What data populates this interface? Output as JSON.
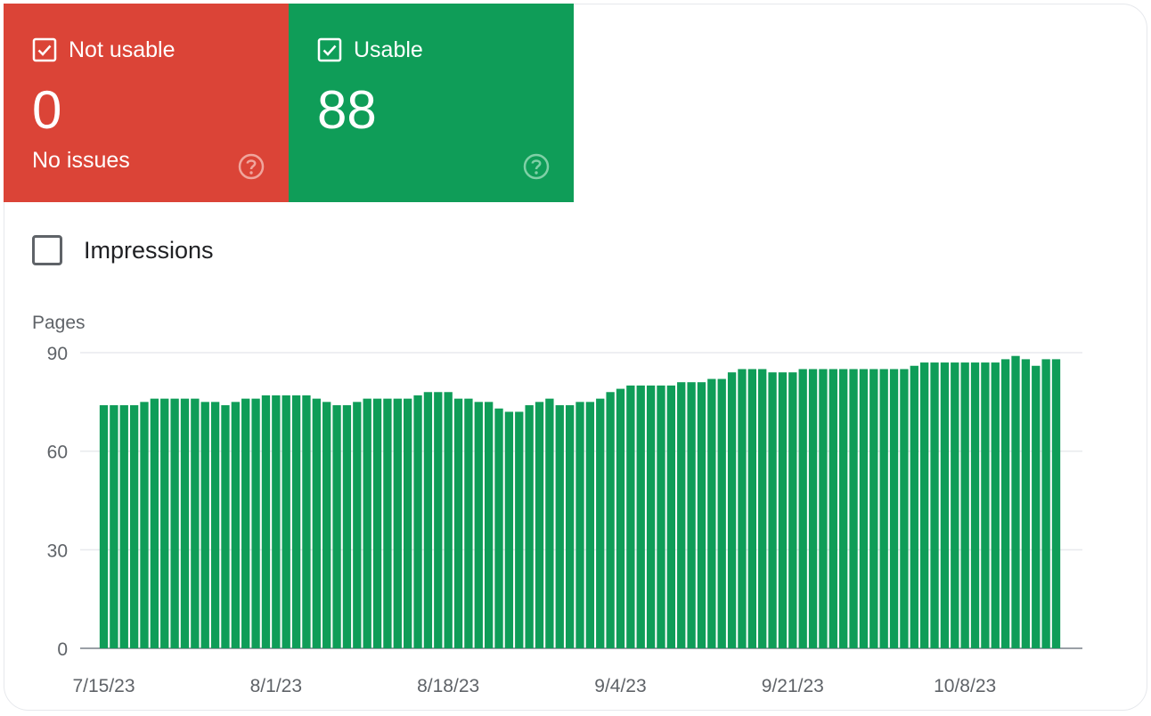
{
  "cards": {
    "not_usable": {
      "label": "Not usable",
      "value": "0",
      "subtitle": "No issues",
      "color": "#db4437"
    },
    "usable": {
      "label": "Usable",
      "value": "88",
      "color": "#0f9d58"
    }
  },
  "impressions": {
    "label": "Impressions",
    "checked": false
  },
  "chart_data": {
    "type": "bar",
    "ylabel": "Pages",
    "ylim": [
      0,
      90
    ],
    "yticks": [
      0,
      30,
      60,
      90
    ],
    "grid": true,
    "color": "#0f9d58",
    "x_tick_labels": [
      "7/15/23",
      "8/1/23",
      "8/18/23",
      "9/4/23",
      "9/21/23",
      "10/8/23"
    ],
    "x_tick_indices": [
      0,
      17,
      34,
      51,
      68,
      85
    ],
    "values": [
      74,
      74,
      74,
      74,
      75,
      76,
      76,
      76,
      76,
      76,
      75,
      75,
      74,
      75,
      76,
      76,
      77,
      77,
      77,
      77,
      77,
      76,
      75,
      74,
      74,
      75,
      76,
      76,
      76,
      76,
      76,
      77,
      78,
      78,
      78,
      76,
      76,
      75,
      75,
      73,
      72,
      72,
      74,
      75,
      76,
      74,
      74,
      75,
      75,
      76,
      78,
      79,
      80,
      80,
      80,
      80,
      80,
      81,
      81,
      81,
      82,
      82,
      84,
      85,
      85,
      85,
      84,
      84,
      84,
      85,
      85,
      85,
      85,
      85,
      85,
      85,
      85,
      85,
      85,
      85,
      86,
      87,
      87,
      87,
      87,
      87,
      87,
      87,
      87,
      88,
      89,
      88,
      86,
      88,
      88
    ]
  }
}
